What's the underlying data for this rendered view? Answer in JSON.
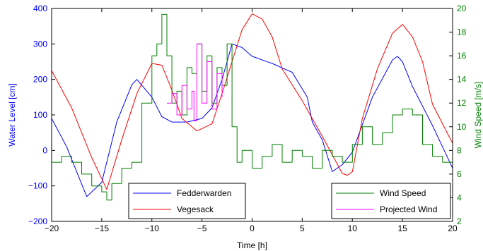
{
  "chart_data": {
    "type": "line",
    "xlabel": "Time [h]",
    "ylabel_left": "Water Level [cm]",
    "ylabel_right": "Wind Speed [m/s]",
    "xlim": [
      -20,
      20
    ],
    "ylim_left": [
      -200,
      400
    ],
    "ylim_right": [
      2,
      20
    ],
    "x_ticks": [
      -20,
      -15,
      -10,
      -5,
      0,
      5,
      10,
      15,
      20
    ],
    "y_left_ticks": [
      -200,
      -100,
      0,
      100,
      200,
      300,
      400
    ],
    "y_right_ticks": [
      2,
      4,
      6,
      8,
      10,
      12,
      14,
      16,
      18,
      20
    ],
    "grid": false,
    "colors": {
      "left_axis": "#0000ff",
      "right_axis": "#008000",
      "fedderwarden": "#0000ff",
      "vegesack": "#ff0000",
      "wind_speed": "#008000",
      "projected_wind": "#ff00ff"
    },
    "legend_left": [
      "Fedderwarden",
      "Vegesack"
    ],
    "legend_right": [
      "Wind Speed",
      "Projected Wind"
    ],
    "series": [
      {
        "name": "Fedderwarden",
        "axis": "left",
        "x": [
          -20,
          -18.5,
          -16.5,
          -15,
          -13.5,
          -12,
          -11.5,
          -10,
          -9,
          -8,
          -6.5,
          -5,
          -4,
          -3,
          -2,
          -1,
          0,
          2,
          4,
          5.5,
          6,
          7,
          8,
          9,
          10,
          12,
          14,
          14.5,
          15,
          16,
          18,
          20
        ],
        "y": [
          90,
          10,
          -130,
          -90,
          80,
          185,
          200,
          150,
          95,
          80,
          80,
          90,
          120,
          200,
          300,
          290,
          265,
          245,
          220,
          150,
          80,
          30,
          -60,
          -40,
          -5,
          150,
          255,
          265,
          250,
          180,
          70,
          -50
        ]
      },
      {
        "name": "Vegesack",
        "axis": "left",
        "x": [
          -20,
          -18,
          -16,
          -14.5,
          -13,
          -11.5,
          -10,
          -9,
          -8,
          -7,
          -5.5,
          -4,
          -3,
          -2,
          -1,
          0,
          1,
          2,
          3,
          5,
          7,
          9,
          9.5,
          10,
          11,
          12.5,
          14,
          15,
          16,
          17,
          18,
          20
        ],
        "y": [
          225,
          120,
          -20,
          -110,
          30,
          160,
          245,
          240,
          170,
          90,
          55,
          75,
          160,
          250,
          340,
          385,
          370,
          320,
          230,
          140,
          40,
          -65,
          -70,
          -60,
          90,
          230,
          330,
          355,
          320,
          250,
          130,
          20
        ]
      },
      {
        "name": "Wind Speed",
        "axis": "right",
        "x": [
          -20,
          -19,
          -18,
          -17,
          -16,
          -15,
          -14.5,
          -14,
          -13,
          -12,
          -11,
          -10,
          -9.5,
          -9,
          -8.5,
          -8,
          -7.5,
          -7,
          -6.5,
          -6,
          -5.5,
          -5,
          -4.5,
          -4,
          -3.5,
          -3,
          -2.5,
          -2,
          -1.5,
          -1,
          0,
          1,
          2,
          3,
          4,
          5,
          6,
          7,
          8,
          9,
          10,
          11,
          12,
          13,
          14,
          15,
          16,
          17,
          18,
          19,
          20
        ],
        "y": [
          7,
          7.5,
          7,
          6,
          5,
          4.5,
          3.8,
          5.2,
          6.5,
          7,
          12,
          16,
          17,
          19.5,
          16,
          12,
          13,
          11,
          15,
          14.5,
          17,
          13,
          16,
          12,
          15,
          13.5,
          17,
          10,
          7,
          8,
          6.5,
          7.5,
          8.5,
          7,
          8,
          7.5,
          6.5,
          8,
          7.5,
          7,
          8.5,
          10,
          8.5,
          9.5,
          11,
          11.5,
          11,
          8.5,
          7.5,
          7,
          7
        ]
      },
      {
        "name": "Projected Wind",
        "axis": "right",
        "x": [
          -8.5,
          -8,
          -7.5,
          -7,
          -6.5,
          -6,
          -5.8,
          -5.5,
          -5,
          -4.5,
          -4,
          -3.5,
          -3
        ],
        "y": [
          12,
          12.8,
          11,
          13.5,
          11.5,
          13,
          10.5,
          17,
          12,
          15.5,
          11.5,
          14.5,
          12.5
        ]
      }
    ]
  }
}
